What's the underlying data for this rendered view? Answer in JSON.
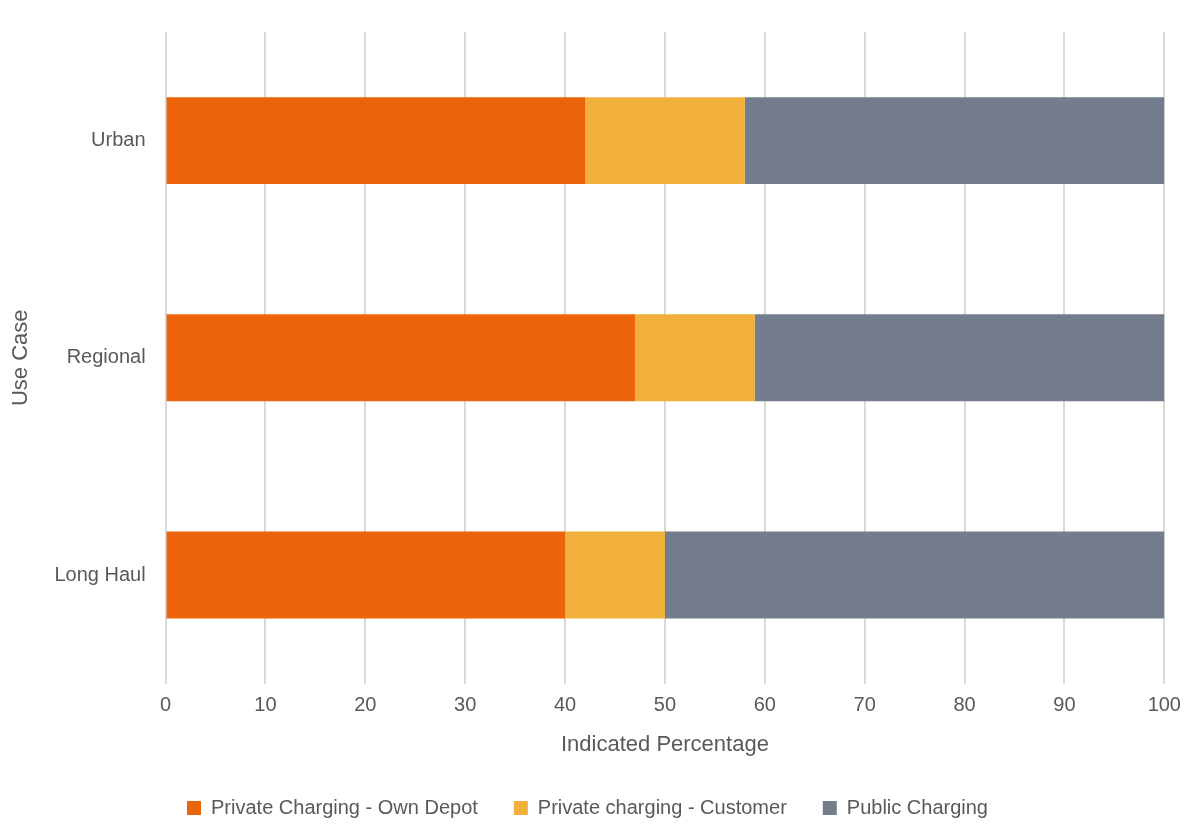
{
  "chart_data": {
    "type": "bar",
    "orientation": "horizontal",
    "stacked": true,
    "xlabel": "Indicated Percentage",
    "ylabel": "Use Case",
    "categories": [
      "Urban",
      "Regional",
      "Long Haul"
    ],
    "series": [
      {
        "name": "Private Charging - Own Depot",
        "color": "#eb6409",
        "values": [
          42,
          47,
          40
        ]
      },
      {
        "name": "Private charging - Customer",
        "color": "#f0b03b",
        "values": [
          16,
          12,
          10
        ]
      },
      {
        "name": "Public Charging",
        "color": "#737d8e",
        "values": [
          42,
          41,
          50
        ]
      }
    ],
    "xlim": [
      0,
      100
    ],
    "xticks": [
      0,
      10,
      20,
      30,
      40,
      50,
      60,
      70,
      80,
      90,
      100
    ],
    "grid": "x",
    "legend": "bottom"
  }
}
